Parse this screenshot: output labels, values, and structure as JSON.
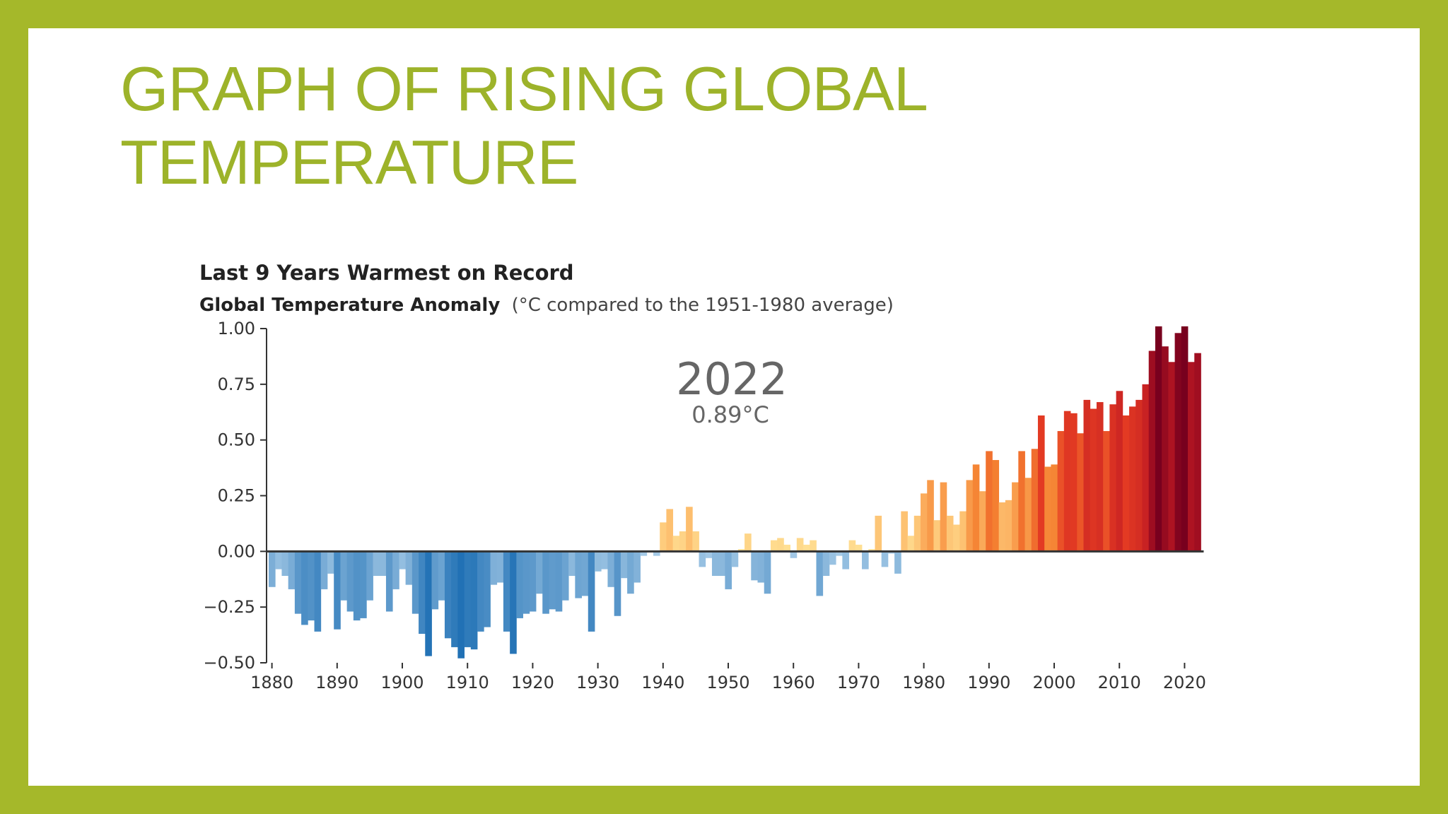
{
  "slide": {
    "title": "GRAPH OF RISING GLOBAL TEMPERATURE",
    "background_color": "#a5b82a",
    "title_color": "#9db32a"
  },
  "chart_data": {
    "type": "bar",
    "title": "Last 9 Years Warmest on Record",
    "subtitle_bold": "Global Temperature Anomaly",
    "subtitle_rest": "(°C compared to the 1951-1980 average)",
    "annotation_year": "2022",
    "annotation_value": "0.89°C",
    "xlabel": "",
    "ylabel": "Global Temperature Anomaly (°C)",
    "ylim": [
      -0.5,
      1.0
    ],
    "y_ticks": [
      1.0,
      0.75,
      0.5,
      0.25,
      0.0,
      -0.25,
      -0.5
    ],
    "y_tick_labels": [
      "1.00",
      "0.75",
      "0.50",
      "0.25",
      "0.00",
      "−0.25",
      "−0.50"
    ],
    "x_ticks": [
      1880,
      1890,
      1900,
      1910,
      1920,
      1930,
      1940,
      1950,
      1960,
      1970,
      1980,
      1990,
      2000,
      2010,
      2020
    ],
    "grid": false,
    "x": [
      1880,
      1881,
      1882,
      1883,
      1884,
      1885,
      1886,
      1887,
      1888,
      1889,
      1890,
      1891,
      1892,
      1893,
      1894,
      1895,
      1896,
      1897,
      1898,
      1899,
      1900,
      1901,
      1902,
      1903,
      1904,
      1905,
      1906,
      1907,
      1908,
      1909,
      1910,
      1911,
      1912,
      1913,
      1914,
      1915,
      1916,
      1917,
      1918,
      1919,
      1920,
      1921,
      1922,
      1923,
      1924,
      1925,
      1926,
      1927,
      1928,
      1929,
      1930,
      1931,
      1932,
      1933,
      1934,
      1935,
      1936,
      1937,
      1938,
      1939,
      1940,
      1941,
      1942,
      1943,
      1944,
      1945,
      1946,
      1947,
      1948,
      1949,
      1950,
      1951,
      1952,
      1953,
      1954,
      1955,
      1956,
      1957,
      1958,
      1959,
      1960,
      1961,
      1962,
      1963,
      1964,
      1965,
      1966,
      1967,
      1968,
      1969,
      1970,
      1971,
      1972,
      1973,
      1974,
      1975,
      1976,
      1977,
      1978,
      1979,
      1980,
      1981,
      1982,
      1983,
      1984,
      1985,
      1986,
      1987,
      1988,
      1989,
      1990,
      1991,
      1992,
      1993,
      1994,
      1995,
      1996,
      1997,
      1998,
      1999,
      2000,
      2001,
      2002,
      2003,
      2004,
      2005,
      2006,
      2007,
      2008,
      2009,
      2010,
      2011,
      2012,
      2013,
      2014,
      2015,
      2016,
      2017,
      2018,
      2019,
      2020,
      2021,
      2022
    ],
    "values": [
      -0.16,
      -0.08,
      -0.11,
      -0.17,
      -0.28,
      -0.33,
      -0.31,
      -0.36,
      -0.17,
      -0.1,
      -0.35,
      -0.22,
      -0.27,
      -0.31,
      -0.3,
      -0.22,
      -0.11,
      -0.11,
      -0.27,
      -0.17,
      -0.08,
      -0.15,
      -0.28,
      -0.37,
      -0.47,
      -0.26,
      -0.22,
      -0.39,
      -0.43,
      -0.48,
      -0.43,
      -0.44,
      -0.36,
      -0.34,
      -0.15,
      -0.14,
      -0.36,
      -0.46,
      -0.3,
      -0.28,
      -0.27,
      -0.19,
      -0.28,
      -0.26,
      -0.27,
      -0.22,
      -0.11,
      -0.21,
      -0.2,
      -0.36,
      -0.09,
      -0.08,
      -0.16,
      -0.29,
      -0.12,
      -0.19,
      -0.14,
      -0.02,
      -0.0,
      -0.02,
      0.13,
      0.19,
      0.07,
      0.09,
      0.2,
      0.09,
      -0.07,
      -0.03,
      -0.11,
      -0.11,
      -0.17,
      -0.07,
      0.01,
      0.08,
      -0.13,
      -0.14,
      -0.19,
      0.05,
      0.06,
      0.03,
      -0.03,
      0.06,
      0.03,
      0.05,
      -0.2,
      -0.11,
      -0.06,
      -0.02,
      -0.08,
      0.05,
      0.03,
      -0.08,
      0.01,
      0.16,
      -0.07,
      -0.01,
      -0.1,
      0.18,
      0.07,
      0.16,
      0.26,
      0.32,
      0.14,
      0.31,
      0.16,
      0.12,
      0.18,
      0.32,
      0.39,
      0.27,
      0.45,
      0.41,
      0.22,
      0.23,
      0.31,
      0.45,
      0.33,
      0.46,
      0.61,
      0.38,
      0.39,
      0.54,
      0.63,
      0.62,
      0.53,
      0.68,
      0.64,
      0.67,
      0.54,
      0.66,
      0.72,
      0.61,
      0.65,
      0.68,
      0.75,
      0.9,
      1.01,
      0.92,
      0.85,
      0.98,
      1.01,
      0.85,
      0.89
    ]
  }
}
